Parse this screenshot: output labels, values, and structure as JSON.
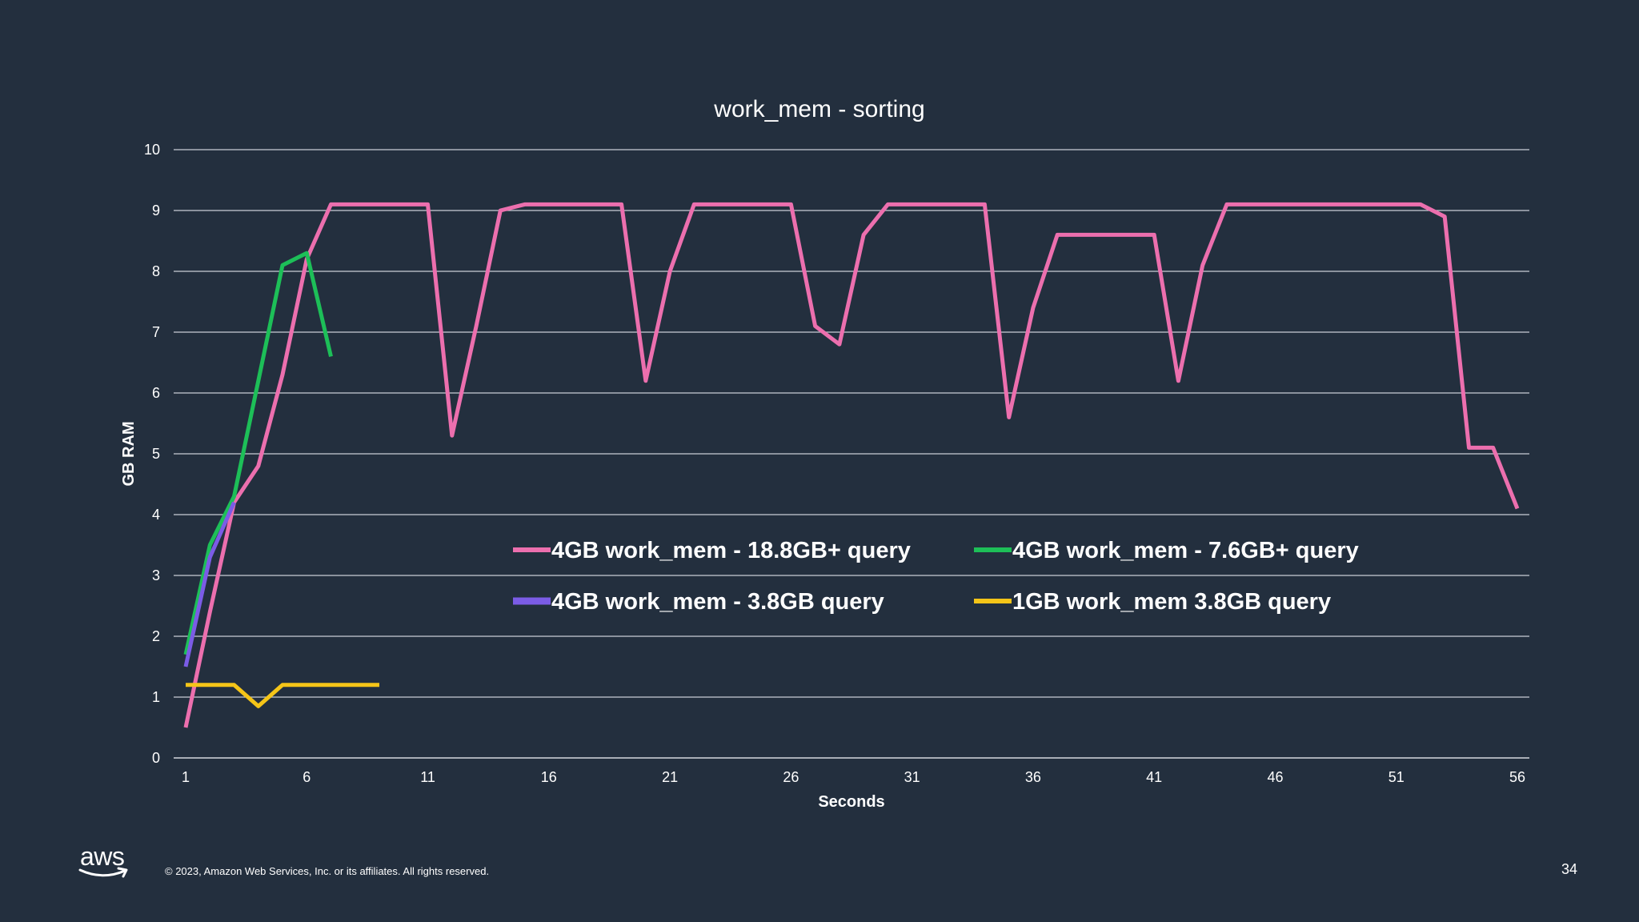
{
  "footer": {
    "logo_text": "aws",
    "copyright": "© 2023, Amazon Web Services, Inc. or its affiliates. All rights reserved.",
    "page_number": "34"
  },
  "colors": {
    "background": "#232F3E",
    "pink": "#EC6FAE",
    "green": "#1DBF58",
    "purple": "#7B5CE6",
    "yellow": "#F5C518"
  },
  "chart_data": {
    "type": "line",
    "title": "work_mem - sorting",
    "xlabel": "Seconds",
    "ylabel": "GB RAM",
    "ylim": [
      0,
      10
    ],
    "xlim": [
      1,
      56
    ],
    "yticks": [
      0,
      1,
      2,
      3,
      4,
      5,
      6,
      7,
      8,
      9,
      10
    ],
    "xticks": [
      1,
      6,
      11,
      16,
      21,
      26,
      31,
      36,
      41,
      46,
      51,
      56
    ],
    "grid": true,
    "legend_position": "center",
    "series": [
      {
        "name": "4GB work_mem - 18.8GB+ query",
        "color": "#EC6FAE",
        "x": [
          1,
          2,
          3,
          4,
          5,
          6,
          7,
          8,
          9,
          10,
          11,
          12,
          13,
          14,
          15,
          16,
          17,
          18,
          19,
          20,
          21,
          22,
          23,
          24,
          25,
          26,
          27,
          28,
          29,
          30,
          31,
          32,
          33,
          34,
          35,
          36,
          37,
          38,
          39,
          40,
          41,
          42,
          43,
          44,
          45,
          46,
          47,
          48,
          49,
          50,
          51,
          52,
          53,
          54,
          55,
          56
        ],
        "values": [
          0.5,
          2.4,
          4.2,
          4.8,
          6.3,
          8.2,
          9.1,
          9.1,
          9.1,
          9.1,
          9.1,
          5.3,
          7.1,
          9.0,
          9.1,
          9.1,
          9.1,
          9.1,
          9.1,
          6.2,
          8.0,
          9.1,
          9.1,
          9.1,
          9.1,
          9.1,
          7.1,
          6.8,
          8.6,
          9.1,
          9.1,
          9.1,
          9.1,
          9.1,
          5.6,
          7.4,
          8.6,
          8.6,
          8.6,
          8.6,
          8.6,
          6.2,
          8.1,
          9.1,
          9.1,
          9.1,
          9.1,
          9.1,
          9.1,
          9.1,
          9.1,
          9.1,
          8.9,
          5.1,
          5.1,
          4.1
        ]
      },
      {
        "name": "4GB work_mem - 7.6GB+ query",
        "color": "#1DBF58",
        "x": [
          1,
          2,
          3,
          4,
          5,
          6,
          7
        ],
        "values": [
          1.7,
          3.5,
          4.3,
          6.2,
          8.1,
          8.3,
          6.6
        ]
      },
      {
        "name": "4GB work_mem - 3.8GB query",
        "color": "#7B5CE6",
        "x": [
          1,
          2,
          3
        ],
        "values": [
          1.5,
          3.3,
          4.2
        ]
      },
      {
        "name": "1GB work_mem  3.8GB query",
        "color": "#F5C518",
        "x": [
          1,
          2,
          3,
          4,
          5,
          6,
          7,
          8,
          9
        ],
        "values": [
          1.2,
          1.2,
          1.2,
          0.85,
          1.2,
          1.2,
          1.2,
          1.2,
          1.2
        ]
      }
    ]
  }
}
